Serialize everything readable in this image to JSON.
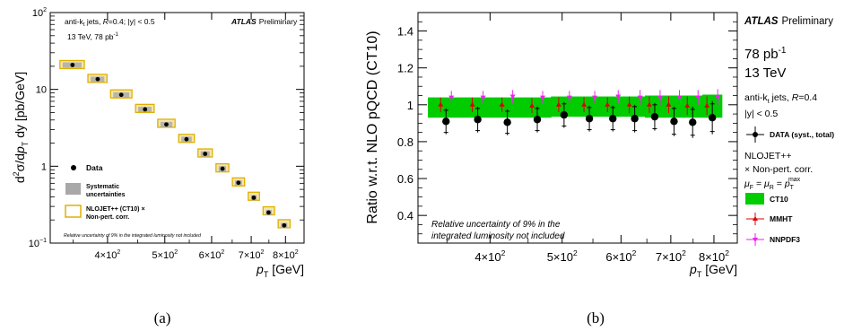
{
  "chart_data": [
    {
      "panel": "(a)",
      "type": "scatter",
      "ylabel_main": "d",
      "ylabel_sup1": "2",
      "ylabel_mid": "σ/d",
      "ylabel_p": "p",
      "ylabel_sub": "T",
      "ylabel_tail": " dy [pb/GeV]",
      "xlabel_p": "p",
      "xlabel_sub": "T",
      "xlabel_unit": " [GeV]",
      "xscale": "log",
      "yscale": "log",
      "xlim": [
        320,
        860
      ],
      "ylim": [
        0.1,
        100
      ],
      "xticks": [
        {
          "v": 400,
          "label": "4×10",
          "exp": "2"
        },
        {
          "v": 500,
          "label": "5×10",
          "exp": "2"
        },
        {
          "v": 600,
          "label": "6×10",
          "exp": "2"
        },
        {
          "v": 700,
          "label": "7×10",
          "exp": "2"
        },
        {
          "v": 800,
          "label": "8×10",
          "exp": "2"
        }
      ],
      "yticks": [
        {
          "v": 0.1,
          "label": "10",
          "exp": "−1"
        },
        {
          "v": 1,
          "label": "1",
          "exp": ""
        },
        {
          "v": 10,
          "label": "10",
          "exp": ""
        },
        {
          "v": 100,
          "label": "10",
          "exp": "2"
        }
      ],
      "bins": [
        [
          330,
          368
        ],
        [
          368,
          402
        ],
        [
          402,
          443
        ],
        [
          443,
          483
        ],
        [
          483,
          524
        ],
        [
          524,
          565
        ],
        [
          565,
          606
        ],
        [
          606,
          646
        ],
        [
          646,
          687
        ],
        [
          687,
          728
        ],
        [
          728,
          772
        ],
        [
          772,
          820
        ]
      ],
      "x": [
        349,
        385,
        422,
        463,
        503,
        544,
        585,
        626,
        666,
        707,
        749,
        796
      ],
      "data": [
        20.8,
        13.6,
        8.5,
        5.5,
        3.5,
        2.25,
        1.45,
        0.93,
        0.61,
        0.39,
        0.25,
        0.17
      ],
      "theory": [
        21.2,
        14.0,
        8.8,
        5.7,
        3.65,
        2.32,
        1.5,
        0.96,
        0.63,
        0.41,
        0.265,
        0.18
      ],
      "theory_band_frac": 0.12,
      "syst_frac": 0.08,
      "annotations": {
        "jets_a": "anti-k",
        "jets_sub": "t",
        "jets_b": " jets,  ",
        "R_label": "R",
        "R_value": "=0.4; |y| < 0.5",
        "energy_lumi": "13 TeV, 78 pb",
        "lumi_exp": "-1",
        "atlas": "ATLAS",
        "preliminary": "Preliminary",
        "lumi_note": "Relative uncertainty of 9% in the integrated luminosity not included"
      },
      "legend": {
        "data": "Data",
        "syst_1": "Systematic",
        "syst_2": "uncertainties",
        "theory_1": "NLOJET++ (CT10) ×",
        "theory_2": "Non-pert. corr."
      },
      "colors": {
        "data": "#000000",
        "syst": "#a8a8a8",
        "theory_fill": "#f2e6b0",
        "theory_edge": "#e0b000"
      }
    },
    {
      "panel": "(b)",
      "type": "scatter",
      "ylabel": "Ratio w.r.t. NLO pQCD (CT10)",
      "xlabel_p": "p",
      "xlabel_sub": "T",
      "xlabel_unit": " [GeV]",
      "xscale": "log",
      "xlim": [
        320,
        860
      ],
      "ylim": [
        0.25,
        1.5
      ],
      "xticks": [
        {
          "v": 400,
          "label": "4×10",
          "exp": "2"
        },
        {
          "v": 500,
          "label": "5×10",
          "exp": "2"
        },
        {
          "v": 600,
          "label": "6×10",
          "exp": "2"
        },
        {
          "v": 700,
          "label": "7×10",
          "exp": "2"
        },
        {
          "v": 800,
          "label": "8×10",
          "exp": "2"
        }
      ],
      "yticks": [
        0.4,
        0.6,
        0.8,
        1.0,
        1.2,
        1.4
      ],
      "ytick_labels": [
        "0.4",
        "0.6",
        "0.8",
        "1",
        "1.2",
        "1.4"
      ],
      "bins": [
        [
          330,
          368
        ],
        [
          368,
          402
        ],
        [
          402,
          443
        ],
        [
          443,
          483
        ],
        [
          483,
          524
        ],
        [
          524,
          565
        ],
        [
          565,
          606
        ],
        [
          606,
          646
        ],
        [
          646,
          687
        ],
        [
          687,
          728
        ],
        [
          728,
          772
        ],
        [
          772,
          820
        ]
      ],
      "x": [
        349,
        385,
        422,
        463,
        503,
        544,
        585,
        626,
        666,
        707,
        749,
        796
      ],
      "ct10_lo": [
        0.93,
        0.93,
        0.93,
        0.93,
        0.935,
        0.935,
        0.935,
        0.935,
        0.93,
        0.93,
        0.93,
        0.93
      ],
      "ct10_hi": [
        1.04,
        1.04,
        1.04,
        1.04,
        1.045,
        1.045,
        1.045,
        1.045,
        1.05,
        1.05,
        1.05,
        1.055
      ],
      "data": [
        0.91,
        0.92,
        0.905,
        0.92,
        0.945,
        0.925,
        0.925,
        0.925,
        0.935,
        0.91,
        0.905,
        0.93
      ],
      "data_syst": [
        0.06,
        0.06,
        0.06,
        0.06,
        0.06,
        0.06,
        0.06,
        0.065,
        0.065,
        0.07,
        0.07,
        0.075
      ],
      "data_total": [
        0.07,
        0.07,
        0.07,
        0.07,
        0.07,
        0.07,
        0.07,
        0.075,
        0.075,
        0.08,
        0.085,
        0.09
      ],
      "mmht": [
        1.0,
        1.0,
        1.0,
        0.995,
        1.0,
        1.0,
        1.0,
        1.0,
        1.0,
        1.0,
        0.995,
        0.995
      ],
      "mmht_err": [
        0.04,
        0.04,
        0.04,
        0.04,
        0.04,
        0.04,
        0.04,
        0.045,
        0.045,
        0.045,
        0.05,
        0.05
      ],
      "nnpdf": [
        1.04,
        1.04,
        1.045,
        1.04,
        1.04,
        1.04,
        1.045,
        1.04,
        1.04,
        1.04,
        1.04,
        1.04
      ],
      "nnpdf_err": [
        0.035,
        0.035,
        0.035,
        0.035,
        0.035,
        0.035,
        0.035,
        0.04,
        0.04,
        0.04,
        0.04,
        0.045
      ],
      "annotations": {
        "lumi_note_1": "Relative uncertainty of 9% in the",
        "lumi_note_2": "integrated luminosity not included",
        "atlas": "ATLAS",
        "preliminary": "Preliminary",
        "lumi": "78 pb",
        "lumi_exp": "-1",
        "energy": "13 TeV",
        "jets_a": "anti-k",
        "jets_sub": "t",
        "jets_b": " jets,  ",
        "R_label": "R",
        "R_value": "=0.4",
        "rapidity": "|y| < 0.5",
        "theory_1": "NLOJET++",
        "theory_2": "× Non-pert. corr.",
        "scale_mu_f": "μ",
        "scale_f": "F",
        "scale_eq1": " = ",
        "scale_mu_r": "μ",
        "scale_r": "R",
        "scale_eq2": " = ",
        "scale_p": "p",
        "scale_sub": "T",
        "scale_sup": "max"
      },
      "legend": {
        "data": "DATA (syst., total)",
        "ct10": "CT10",
        "mmht": "MMHT",
        "nnpdf": "NNPDF3"
      },
      "colors": {
        "data": "#000000",
        "ct10": "#00cc00",
        "mmht": "#dd0000",
        "nnpdf": "#ee22ee"
      }
    }
  ],
  "captions": {
    "a": "(a)",
    "b": "(b)"
  }
}
